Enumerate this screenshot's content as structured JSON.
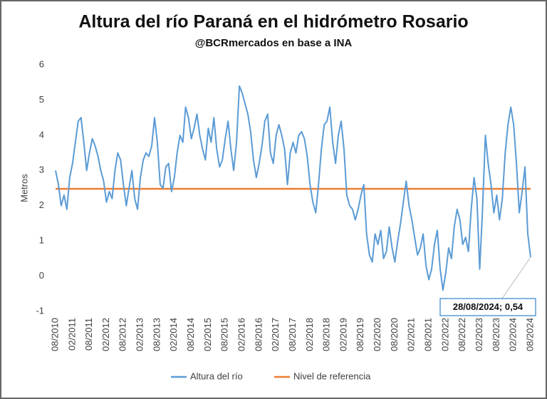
{
  "chart_data": {
    "type": "line",
    "title": "Altura del río Paraná en el hidrómetro Rosario",
    "subtitle": "@BCRmercados en base a INA",
    "y_label": "Metros",
    "x": [
      "08/2010",
      null,
      null,
      null,
      null,
      null,
      "02/2011",
      null,
      null,
      null,
      null,
      null,
      "08/2011",
      null,
      null,
      null,
      null,
      null,
      "02/2012",
      null,
      null,
      null,
      null,
      null,
      "08/2012",
      null,
      null,
      null,
      null,
      null,
      "02/2013",
      null,
      null,
      null,
      null,
      null,
      "08/2013",
      null,
      null,
      null,
      null,
      null,
      "02/2014",
      null,
      null,
      null,
      null,
      null,
      "08/2014",
      null,
      null,
      null,
      null,
      null,
      "02/2015",
      null,
      null,
      null,
      null,
      null,
      "08/2015",
      null,
      null,
      null,
      null,
      null,
      "02/2016",
      null,
      null,
      null,
      null,
      null,
      "08/2016",
      null,
      null,
      null,
      null,
      null,
      "02/2017",
      null,
      null,
      null,
      null,
      null,
      "08/2017",
      null,
      null,
      null,
      null,
      null,
      "02/2018",
      null,
      null,
      null,
      null,
      null,
      "08/2018",
      null,
      null,
      null,
      null,
      null,
      "02/2019",
      null,
      null,
      null,
      null,
      null,
      "08/2019",
      null,
      null,
      null,
      null,
      null,
      "02/2020",
      null,
      null,
      null,
      null,
      null,
      "08/2020",
      null,
      null,
      null,
      null,
      null,
      "02/2021",
      null,
      null,
      null,
      null,
      null,
      "08/2021",
      null,
      null,
      null,
      null,
      null,
      "02/2022",
      null,
      null,
      null,
      null,
      null,
      "08/2022",
      null,
      null,
      null,
      null,
      null,
      "02/2023",
      null,
      null,
      null,
      null,
      null,
      "08/2023",
      null,
      null,
      null,
      null,
      null,
      "02/2024",
      null,
      null,
      null,
      null,
      null,
      "08/2024"
    ],
    "series": [
      {
        "name": "Altura del río",
        "color": "#5b9bd5",
        "values": [
          3.0,
          2.6,
          2.0,
          2.3,
          1.9,
          2.8,
          3.2,
          3.8,
          4.4,
          4.5,
          3.8,
          3.0,
          3.5,
          3.9,
          3.7,
          3.4,
          3.0,
          2.7,
          2.1,
          2.4,
          2.2,
          3.0,
          3.5,
          3.3,
          2.6,
          2.0,
          2.5,
          3.0,
          2.2,
          1.9,
          2.8,
          3.3,
          3.5,
          3.4,
          3.7,
          4.5,
          3.8,
          2.6,
          2.5,
          3.1,
          3.2,
          2.4,
          2.8,
          3.5,
          4.0,
          3.8,
          4.8,
          4.5,
          3.9,
          4.2,
          4.6,
          4.0,
          3.6,
          3.3,
          4.2,
          3.8,
          4.5,
          3.6,
          3.1,
          3.3,
          3.9,
          4.4,
          3.6,
          3.0,
          3.8,
          5.4,
          5.2,
          4.9,
          4.6,
          4.1,
          3.3,
          2.8,
          3.2,
          3.7,
          4.4,
          4.6,
          3.5,
          3.2,
          4.0,
          4.3,
          4.0,
          3.6,
          2.6,
          3.5,
          3.8,
          3.5,
          4.0,
          4.1,
          3.9,
          3.4,
          2.6,
          2.1,
          1.8,
          2.6,
          3.6,
          4.3,
          4.4,
          4.8,
          3.8,
          3.2,
          4.0,
          4.4,
          3.6,
          2.3,
          2.0,
          1.9,
          1.6,
          1.9,
          2.3,
          2.6,
          1.2,
          0.6,
          0.4,
          1.2,
          0.9,
          1.3,
          0.5,
          0.7,
          1.4,
          0.8,
          0.4,
          1.0,
          1.5,
          2.1,
          2.7,
          2.0,
          1.6,
          1.1,
          0.6,
          0.8,
          1.2,
          0.3,
          -0.1,
          0.2,
          0.9,
          1.3,
          0.2,
          -0.4,
          0.1,
          0.8,
          0.5,
          1.4,
          1.9,
          1.6,
          0.9,
          1.1,
          0.7,
          1.9,
          2.8,
          2.2,
          0.2,
          1.9,
          4.0,
          3.2,
          2.6,
          1.8,
          2.3,
          1.6,
          2.2,
          3.5,
          4.3,
          4.8,
          4.3,
          3.2,
          1.8,
          2.4,
          3.1,
          1.2,
          0.54
        ]
      }
    ],
    "reference": {
      "name": "Nivel de referencia",
      "color": "#ed7d31",
      "value": 2.48
    },
    "annotation": "28/08/2024; 0,54",
    "ylim": [
      -1,
      6
    ],
    "yticks": [
      -1,
      0,
      1,
      2,
      3,
      4,
      5,
      6
    ],
    "grid": false
  }
}
